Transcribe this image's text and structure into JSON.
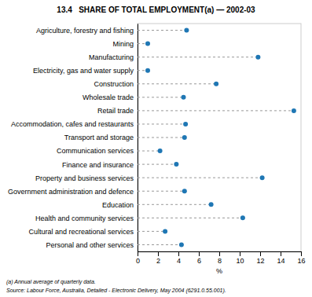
{
  "chart_data": {
    "type": "lollipop",
    "orientation": "horizontal",
    "title": "13.4   SHARE OF TOTAL EMPLOYMENT(a) — 2002-03",
    "categories": [
      "Agriculture, forestry and fishing",
      "Mining",
      "Manufacturing",
      "Electricity, gas and water supply",
      "Construction",
      "Wholesale trade",
      "Retail trade",
      "Accommodation, cafes and restaurants",
      "Transport and storage",
      "Communication services",
      "Finance and insurance",
      "Property and business services",
      "Government administration and defence",
      "Education",
      "Health and community services",
      "Cultural and recreational services",
      "Personal and other services"
    ],
    "values": [
      4.8,
      1.0,
      11.8,
      1.0,
      7.7,
      4.5,
      15.3,
      4.7,
      4.6,
      2.2,
      3.8,
      12.2,
      4.6,
      7.2,
      10.3,
      2.7,
      4.3
    ],
    "xlabel": "%",
    "xlim": [
      0,
      16
    ],
    "xticks": [
      0,
      2,
      4,
      6,
      8,
      10,
      12,
      14,
      16
    ],
    "annotations": [
      "(a) Annual average of quarterly data.",
      "Source: Labour Force, Australia, Detailed - Electronic Delivery, May 2004 (6291.0.55.001)."
    ],
    "marker": "circle",
    "line_style": "dashed",
    "grid": false
  }
}
